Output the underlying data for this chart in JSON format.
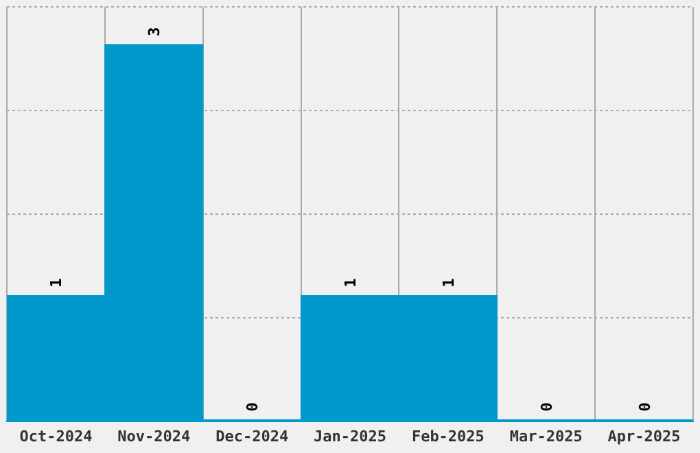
{
  "chart_data": {
    "type": "bar",
    "categories": [
      "Oct-2024",
      "Nov-2024",
      "Dec-2024",
      "Jan-2025",
      "Feb-2025",
      "Mar-2025",
      "Apr-2025"
    ],
    "values": [
      1,
      3,
      0,
      1,
      1,
      0,
      0
    ],
    "color": "#0099cc",
    "ylim": [
      0,
      3.3
    ],
    "yticks": [
      {
        "value": 0,
        "label": null
      },
      {
        "value": 0.825,
        "label": null
      },
      {
        "value": 1.65,
        "label": null
      },
      {
        "value": 2.475,
        "label": null
      },
      {
        "value": 3.3,
        "label": null
      }
    ],
    "grid": true,
    "tick_labels": "x",
    "data_labels": true,
    "legend": false
  }
}
